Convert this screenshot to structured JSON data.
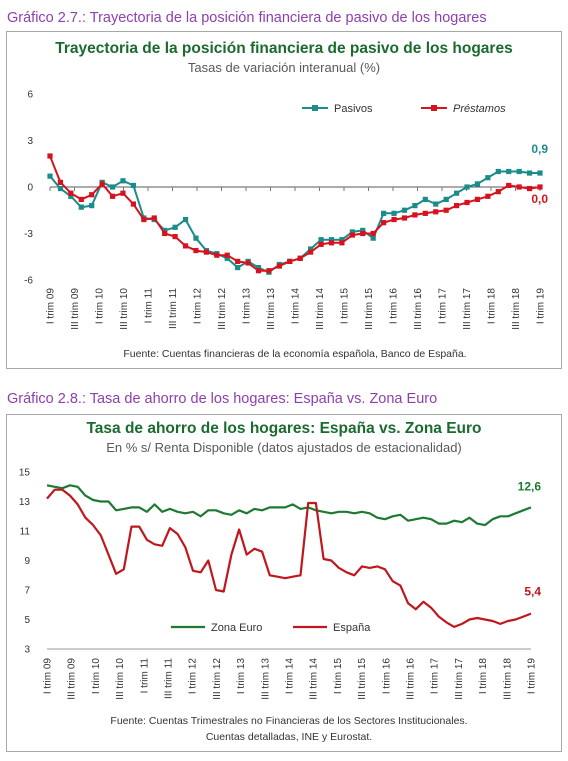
{
  "figure1": {
    "heading": "Gráfico 2.7.: Trayectoria de la posición financiera de pasivo de los hogares",
    "title": "Trayectoria de la posición financiera de pasivo de los hogares",
    "subtitle": "Tasas de variación interanual (%)",
    "source": "Fuente: Cuentas financieras de la economía española, Banco de España."
  },
  "figure2": {
    "heading": "Gráfico 2.8.: Tasa de ahorro de los hogares: España vs. Zona Euro",
    "title": "Tasa de ahorro de los hogares: España vs. Zona Euro",
    "subtitle": "En % s/ Renta Disponible (datos ajustados de estacionalidad)",
    "source_line1": "Fuente: Cuentas Trimestrales no Financieras de los Sectores Institucionales.",
    "source_line2": "Cuentas detalladas, INE y Eurostat."
  },
  "chart_data": [
    {
      "type": "line",
      "title": "Trayectoria de la posición financiera de pasivo de los hogares",
      "subtitle": "Tasas de variación interanual (%)",
      "ylim": [
        -6,
        6
      ],
      "yticks": [
        6,
        3,
        0,
        -3,
        -6
      ],
      "x_labels": [
        "I trim 09",
        "III trim 09",
        "I trim 10",
        "III trim 10",
        "I trim 11",
        "III trim 11",
        "I trim 12",
        "III trim 12",
        "I trim 13",
        "III trim 13",
        "I trim 14",
        "III trim 14",
        "I trim 15",
        "III trim 15",
        "I trim 16",
        "III trim 16",
        "I trim 17",
        "III trim 17",
        "I trim 18",
        "III trim 18",
        "I trim 19"
      ],
      "grid": false,
      "legend_position": "top-right",
      "series": [
        {
          "name": "Pasivos",
          "color": "#1a8c8a",
          "marker": "square",
          "end_label": "0,9",
          "values": [
            0.7,
            -0.1,
            -0.6,
            -1.3,
            -1.2,
            0.3,
            0.0,
            0.4,
            0.1,
            -2.0,
            -2.1,
            -2.8,
            -2.6,
            -2.1,
            -3.3,
            -4.1,
            -4.3,
            -4.6,
            -5.2,
            -4.8,
            -5.2,
            -5.5,
            -5.0,
            -4.8,
            -4.6,
            -4.0,
            -3.4,
            -3.4,
            -3.4,
            -2.9,
            -2.8,
            -3.3,
            -1.7,
            -1.7,
            -1.5,
            -1.2,
            -0.8,
            -1.1,
            -0.8,
            -0.4,
            0.0,
            0.2,
            0.6,
            1.0,
            1.0,
            1.0,
            0.9,
            0.9
          ]
        },
        {
          "name": "Préstamos",
          "color": "#d7121f",
          "marker": "square",
          "end_label": "0,0",
          "values": [
            2.0,
            0.3,
            -0.4,
            -0.8,
            -0.5,
            0.2,
            -0.6,
            -0.4,
            -1.1,
            -2.1,
            -2.0,
            -3.0,
            -3.2,
            -3.8,
            -4.1,
            -4.2,
            -4.4,
            -4.4,
            -4.8,
            -4.9,
            -5.4,
            -5.4,
            -5.1,
            -4.8,
            -4.6,
            -4.2,
            -3.7,
            -3.6,
            -3.6,
            -3.1,
            -3.0,
            -3.0,
            -2.3,
            -2.1,
            -2.0,
            -1.8,
            -1.7,
            -1.6,
            -1.5,
            -1.2,
            -1.0,
            -0.8,
            -0.6,
            -0.3,
            0.1,
            0.0,
            -0.1,
            0.0
          ]
        }
      ]
    },
    {
      "type": "line",
      "title": "Tasa de ahorro de los hogares: España vs. Zona Euro",
      "subtitle": "En % s/ Renta Disponible (datos ajustados de estacionalidad)",
      "ylim": [
        3,
        15
      ],
      "yticks": [
        15,
        13,
        11,
        9,
        7,
        5,
        3
      ],
      "x_labels": [
        "I trim 09",
        "III trim 09",
        "I trim 10",
        "III trim 10",
        "I trim 11",
        "III trim 11",
        "I trim 12",
        "III trim 12",
        "I trim 13",
        "III trim 13",
        "I trim 14",
        "III trim 14",
        "I trim 15",
        "III trim 15",
        "I trim 16",
        "III trim 16",
        "I trim 17",
        "III trim 17",
        "I trim 18",
        "III trim 18",
        "I trim 19"
      ],
      "grid": false,
      "legend_position": "bottom-left",
      "series": [
        {
          "name": "Zona Euro",
          "color": "#1e7a32",
          "end_label": "12,6",
          "values": [
            14.1,
            14.0,
            13.9,
            14.1,
            14.0,
            13.4,
            13.1,
            13.0,
            13.0,
            12.4,
            12.5,
            12.6,
            12.6,
            12.3,
            12.8,
            12.3,
            12.5,
            12.3,
            12.2,
            12.3,
            12.0,
            12.4,
            12.4,
            12.2,
            12.1,
            12.4,
            12.2,
            12.5,
            12.4,
            12.6,
            12.6,
            12.6,
            12.8,
            12.5,
            12.6,
            12.4,
            12.3,
            12.2,
            12.3,
            12.3,
            12.2,
            12.3,
            12.2,
            11.9,
            11.8,
            12.0,
            12.1,
            11.7,
            11.8,
            11.9,
            11.8,
            11.5,
            11.5,
            11.7,
            11.6,
            11.9,
            11.5,
            11.4,
            11.8,
            12.0,
            12.0,
            12.2,
            12.4,
            12.6
          ]
        },
        {
          "name": "España",
          "color": "#c0171d",
          "end_label": "5,4",
          "values": [
            13.2,
            13.8,
            13.8,
            13.4,
            12.8,
            11.9,
            11.4,
            10.7,
            9.4,
            8.1,
            8.4,
            11.3,
            11.3,
            10.4,
            10.1,
            10.0,
            11.2,
            10.8,
            9.9,
            8.3,
            8.2,
            9.0,
            7.0,
            6.9,
            9.4,
            11.1,
            9.4,
            9.8,
            9.6,
            8.0,
            7.9,
            7.8,
            7.9,
            8.0,
            12.9,
            12.9,
            9.1,
            9.0,
            8.5,
            8.2,
            8.0,
            8.6,
            8.5,
            8.6,
            8.4,
            7.6,
            7.3,
            6.1,
            5.7,
            6.2,
            5.8,
            5.2,
            4.8,
            4.5,
            4.7,
            5.0,
            5.1,
            5.0,
            4.9,
            4.7,
            4.9,
            5.0,
            5.2,
            5.4
          ]
        }
      ]
    }
  ]
}
